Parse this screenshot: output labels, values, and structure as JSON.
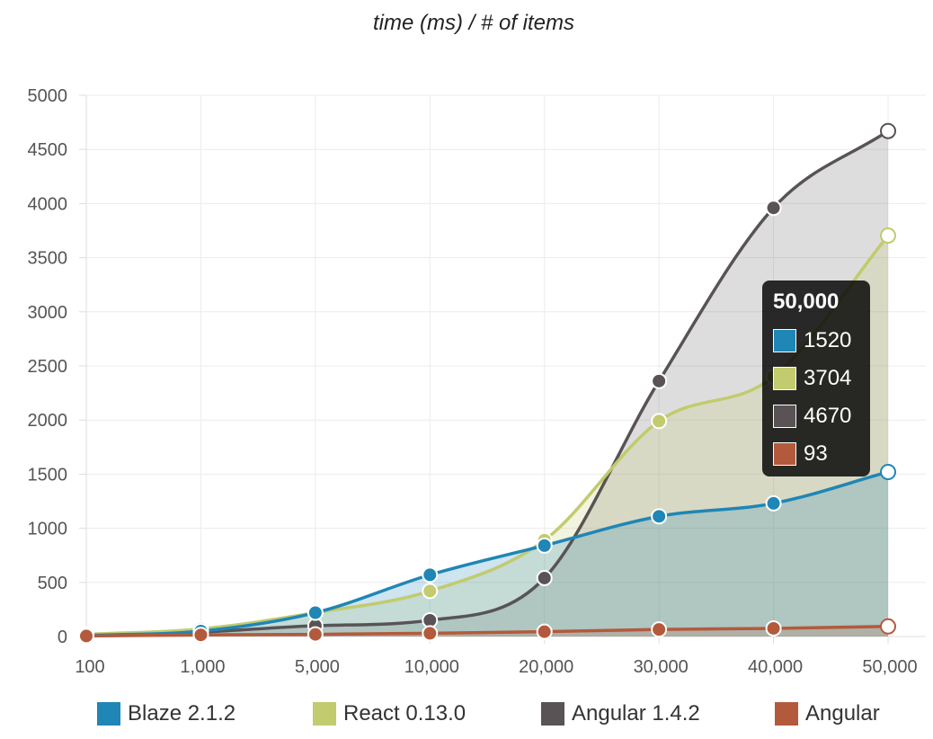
{
  "chart_data": {
    "type": "area",
    "title": "time (ms) / # of items",
    "xlabel": "",
    "ylabel": "",
    "categories": [
      "100",
      "1,000",
      "5,000",
      "10,000",
      "20,000",
      "30,000",
      "40,000",
      "50,000"
    ],
    "ylim": [
      0,
      5000
    ],
    "yticks": [
      "0",
      "500",
      "1000",
      "1500",
      "2000",
      "2500",
      "3000",
      "3500",
      "4000",
      "4500",
      "5000"
    ],
    "grid": true,
    "legend_position": "bottom",
    "series": [
      {
        "name": "Blaze 2.1.2",
        "color": "#1f86b5",
        "values": [
          10,
          50,
          220,
          570,
          840,
          1110,
          1230,
          1520
        ]
      },
      {
        "name": "React 0.13.0",
        "color": "#c2cb6d",
        "values": [
          20,
          70,
          220,
          420,
          890,
          1990,
          2400,
          3704
        ]
      },
      {
        "name": "Angular 1.4.2",
        "color": "#595355",
        "values": [
          10,
          40,
          100,
          150,
          540,
          2360,
          3960,
          4670
        ]
      },
      {
        "name": "Angular",
        "color": "#b35a3c",
        "values": [
          5,
          15,
          20,
          30,
          45,
          65,
          75,
          93
        ]
      }
    ],
    "tooltip": {
      "title": "50,000",
      "values": [
        "1520",
        "3704",
        "4670",
        "93"
      ]
    }
  }
}
